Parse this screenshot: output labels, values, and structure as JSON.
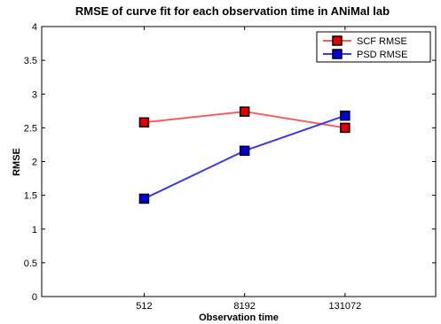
{
  "chart_data": {
    "type": "line",
    "title": "RMSE of curve fit for each observation time in ANiMal lab",
    "xlabel": "Observation time",
    "ylabel": "RMSE",
    "categories": [
      "512",
      "8192",
      "131072"
    ],
    "ylim": [
      0,
      4
    ],
    "yticks": [
      "0",
      "0.5",
      "1",
      "1.5",
      "2",
      "2.5",
      "3",
      "3.5",
      "4"
    ],
    "grid": false,
    "legend_position": "top-right",
    "series": [
      {
        "name": "SCF RMSE",
        "values": [
          2.58,
          2.74,
          2.5
        ],
        "line_color": "#f06060",
        "marker_color": "#e00000"
      },
      {
        "name": "PSD RMSE",
        "values": [
          1.45,
          2.16,
          2.68
        ],
        "line_color": "#3a3ae0",
        "marker_color": "#0000e0"
      }
    ]
  }
}
